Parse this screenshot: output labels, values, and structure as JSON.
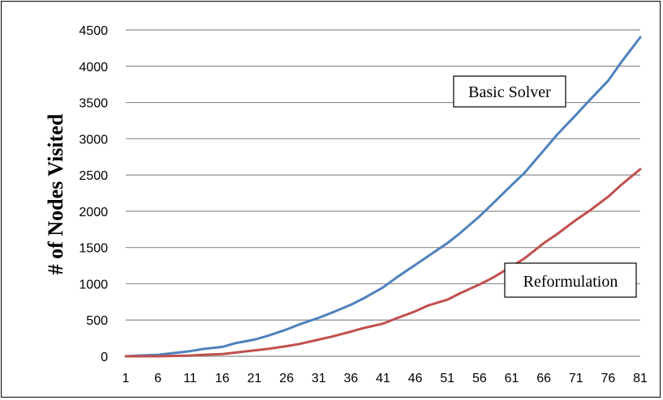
{
  "chart_data": {
    "type": "line",
    "title": "",
    "xlabel": "",
    "ylabel": "# of Nodes Visited",
    "xlim": [
      1,
      81
    ],
    "ylim": [
      0,
      4500
    ],
    "x_ticks": [
      "1",
      "6",
      "11",
      "16",
      "21",
      "26",
      "31",
      "36",
      "41",
      "46",
      "51",
      "56",
      "61",
      "66",
      "71",
      "76",
      "81"
    ],
    "y_ticks": [
      "0",
      "500",
      "1000",
      "1500",
      "2000",
      "2500",
      "3000",
      "3500",
      "4000",
      "4500"
    ],
    "grid": "horizontal",
    "legend": "none (direct labels)",
    "series": [
      {
        "name": "Basic Solver",
        "color": "#4f81bd",
        "x": [
          1,
          3,
          6,
          8,
          11,
          13,
          16,
          18,
          21,
          23,
          26,
          28,
          31,
          33,
          36,
          38,
          41,
          43,
          46,
          48,
          51,
          53,
          56,
          58,
          61,
          63,
          66,
          68,
          71,
          73,
          76,
          78,
          81
        ],
        "values": [
          0,
          10,
          20,
          40,
          70,
          100,
          130,
          180,
          230,
          280,
          370,
          440,
          530,
          600,
          710,
          800,
          950,
          1080,
          1260,
          1380,
          1560,
          1700,
          1930,
          2100,
          2360,
          2530,
          2840,
          3050,
          3330,
          3520,
          3800,
          4050,
          4400
        ]
      },
      {
        "name": "Reformulation",
        "color": "#c0504d",
        "x": [
          1,
          3,
          6,
          8,
          11,
          13,
          16,
          18,
          21,
          23,
          26,
          28,
          31,
          33,
          36,
          38,
          41,
          43,
          46,
          48,
          51,
          53,
          56,
          58,
          61,
          63,
          66,
          68,
          71,
          73,
          76,
          78,
          81
        ],
        "values": [
          0,
          0,
          0,
          5,
          10,
          20,
          30,
          50,
          80,
          100,
          140,
          170,
          230,
          270,
          340,
          390,
          450,
          520,
          620,
          700,
          780,
          870,
          990,
          1080,
          1240,
          1350,
          1560,
          1680,
          1880,
          2000,
          2200,
          2360,
          2580
        ]
      }
    ],
    "annotations": [
      {
        "text": "Basic Solver",
        "series": "Basic Solver"
      },
      {
        "text": "Reformulation",
        "series": "Reformulation"
      }
    ]
  }
}
